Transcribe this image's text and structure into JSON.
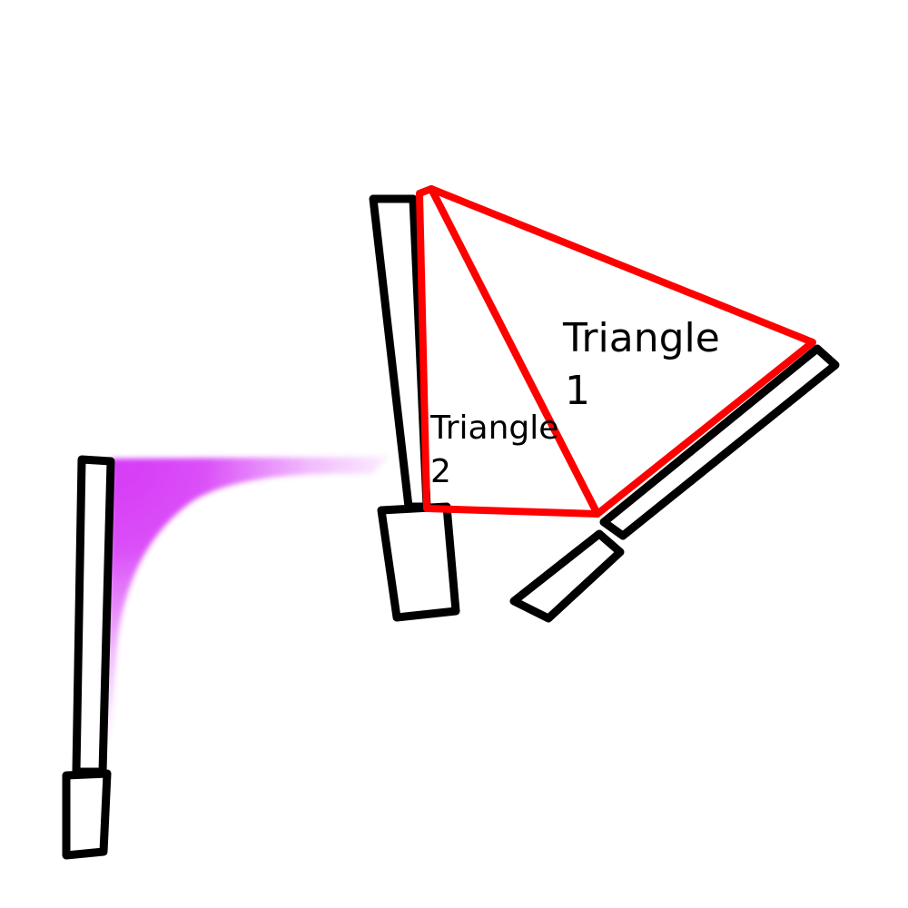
{
  "colors": {
    "outline": "#000000",
    "triangle_edge": "#ff0000",
    "gradient_fill": "#d63af7",
    "background": "#ffffff"
  },
  "labels": {
    "triangle_1": [
      "Triangle",
      "1"
    ],
    "triangle_2": [
      "Triangle",
      "2"
    ]
  }
}
